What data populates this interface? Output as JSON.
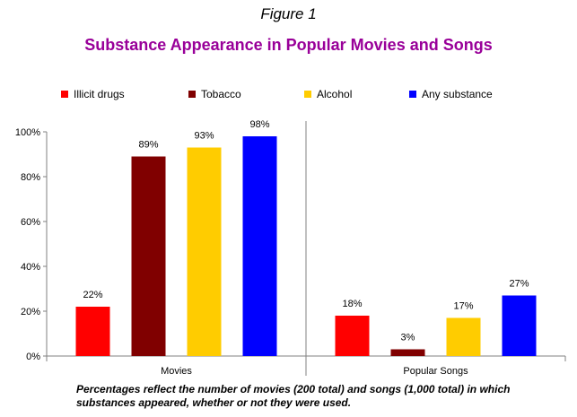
{
  "figure_label": "Figure 1",
  "caption_lines": [
    "Percentages reflect the number of movies (200 total) and songs (1,000 total) in which",
    "substances appeared, whether or not they were used."
  ],
  "chart_data": {
    "type": "bar",
    "title": "Substance Appearance in Popular Movies and Songs",
    "categories": [
      "Movies",
      "Popular Songs"
    ],
    "series": [
      {
        "name": "Illicit drugs",
        "color": "#ff0000",
        "values": [
          22,
          18
        ]
      },
      {
        "name": "Tobacco",
        "color": "#800000",
        "values": [
          89,
          3
        ]
      },
      {
        "name": "Alcohol",
        "color": "#ffcc00",
        "values": [
          93,
          17
        ]
      },
      {
        "name": "Any substance",
        "color": "#0000ff",
        "values": [
          98,
          27
        ]
      }
    ],
    "value_suffix": "%",
    "ylim": [
      0,
      100
    ],
    "yticks": [
      0,
      20,
      40,
      60,
      80,
      100
    ],
    "ytick_labels": [
      "0%",
      "20%",
      "40%",
      "60%",
      "80%",
      "100%"
    ],
    "legend_position": "top",
    "grid": false,
    "xlabel": "",
    "ylabel": ""
  }
}
